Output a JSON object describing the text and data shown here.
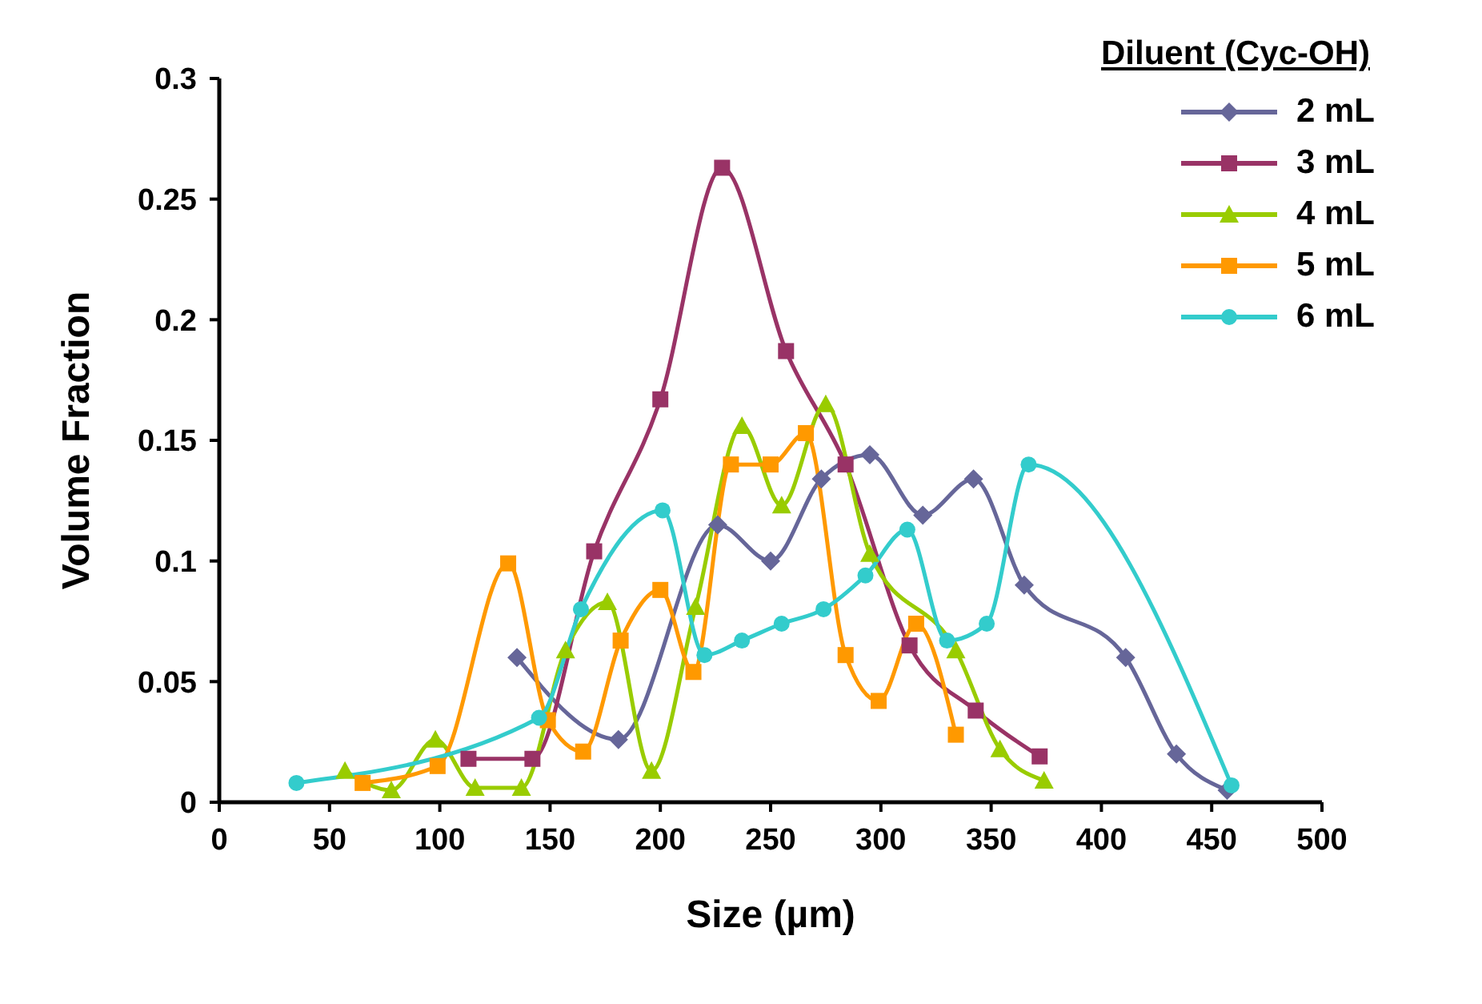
{
  "chart_data": {
    "type": "line",
    "xlabel": "Size (µm)",
    "ylabel": "Volume Fraction",
    "legend_title": "Diluent (Cyc-OH)",
    "legend": "top right",
    "grid": false,
    "xlim": [
      0,
      500
    ],
    "xticks": [
      0,
      50,
      100,
      150,
      200,
      250,
      300,
      350,
      400,
      450,
      500
    ],
    "ylim": [
      0,
      0.3
    ],
    "yticks": [
      0,
      0.05,
      0.1,
      0.15,
      0.2,
      0.25,
      0.3
    ],
    "series": [
      {
        "name": "2 mL",
        "color": "#666699",
        "marker": "diamond",
        "x": [
          135,
          181,
          226,
          250,
          273,
          295,
          319,
          342,
          365,
          411,
          434,
          457
        ],
        "values": [
          0.06,
          0.026,
          0.115,
          0.1,
          0.134,
          0.144,
          0.119,
          0.134,
          0.09,
          0.06,
          0.02,
          0.005
        ]
      },
      {
        "name": "3 mL",
        "color": "#993366",
        "marker": "square",
        "x": [
          113,
          142,
          170,
          200,
          228,
          257,
          284,
          313,
          343,
          372
        ],
        "values": [
          0.018,
          0.018,
          0.104,
          0.167,
          0.263,
          0.187,
          0.14,
          0.065,
          0.038,
          0.019
        ]
      },
      {
        "name": "4 mL",
        "color": "#99cc00",
        "marker": "triangle",
        "x": [
          57,
          78,
          98,
          116,
          137,
          157,
          176,
          196,
          216,
          237,
          255,
          275,
          295,
          334,
          354,
          374
        ],
        "values": [
          0.013,
          0.005,
          0.026,
          0.006,
          0.006,
          0.063,
          0.083,
          0.013,
          0.081,
          0.156,
          0.123,
          0.165,
          0.103,
          0.063,
          0.022,
          0.009
        ]
      },
      {
        "name": "5 mL",
        "color": "#ff9900",
        "marker": "square",
        "x": [
          65,
          99,
          131,
          149,
          165,
          182,
          200,
          215,
          232,
          250,
          266,
          284,
          299,
          316,
          334
        ],
        "values": [
          0.008,
          0.015,
          0.099,
          0.034,
          0.021,
          0.067,
          0.088,
          0.054,
          0.14,
          0.14,
          0.153,
          0.061,
          0.042,
          0.074,
          0.028
        ]
      },
      {
        "name": "6 mL",
        "color": "#33cccc",
        "marker": "circle",
        "x": [
          35,
          145,
          164,
          201,
          220,
          237,
          255,
          274,
          293,
          312,
          330,
          348,
          367,
          459
        ],
        "values": [
          0.008,
          0.035,
          0.08,
          0.121,
          0.061,
          0.067,
          0.074,
          0.08,
          0.094,
          0.113,
          0.067,
          0.074,
          0.14,
          0.007
        ]
      }
    ]
  }
}
